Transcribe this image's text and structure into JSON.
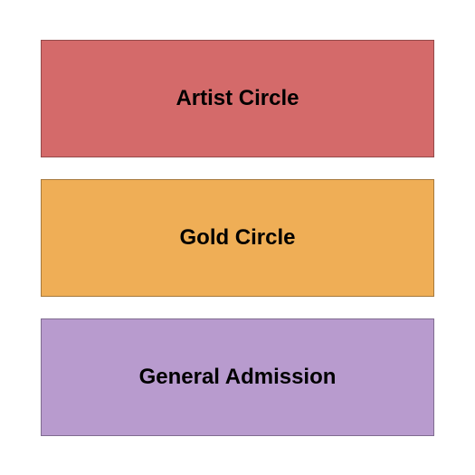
{
  "seating_chart": {
    "type": "infographic",
    "sections": [
      {
        "label": "Artist Circle",
        "background_color": "#d46a6a",
        "text_color": "#000000",
        "font_size": 24,
        "font_weight": "bold"
      },
      {
        "label": "Gold Circle",
        "background_color": "#efae56",
        "text_color": "#000000",
        "font_size": 24,
        "font_weight": "bold"
      },
      {
        "label": "General Admission",
        "background_color": "#b89bce",
        "text_color": "#000000",
        "font_size": 24,
        "font_weight": "bold"
      }
    ],
    "background_color": "#ffffff",
    "section_gap": 24,
    "section_height": 130,
    "border_color": "rgba(0,0,0,0.3)"
  }
}
